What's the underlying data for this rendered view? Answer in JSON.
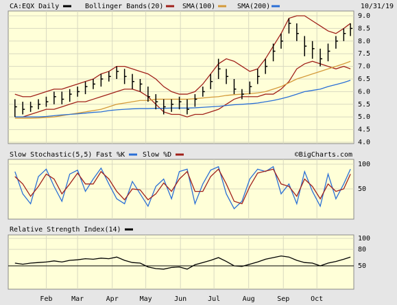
{
  "chart_data": [
    {
      "type": "ohlc",
      "title": "CA:EQX Daily",
      "date": "10/31/19",
      "color": "#000000",
      "x": [
        4,
        11,
        18,
        25,
        32,
        39,
        46,
        53,
        60,
        67,
        74,
        81,
        88,
        95,
        102,
        109,
        116,
        123,
        130,
        137,
        144,
        151,
        158,
        165,
        172,
        179,
        186,
        193,
        200,
        207,
        214,
        221,
        228,
        235,
        242,
        249,
        256,
        263,
        270,
        277,
        284,
        291,
        298,
        304
      ],
      "xlim": [
        -2,
        307
      ],
      "xticks": [
        {
          "value": 32,
          "label": "Feb"
        },
        {
          "value": 60,
          "label": "Mar"
        },
        {
          "value": 91,
          "label": "Apr"
        },
        {
          "value": 121,
          "label": "May"
        },
        {
          "value": 152,
          "label": "Jun"
        },
        {
          "value": 182,
          "label": "Jul"
        },
        {
          "value": 213,
          "label": "Aug"
        },
        {
          "value": 244,
          "label": "Sep"
        },
        {
          "value": 274,
          "label": "Oct"
        }
      ],
      "close": [
        5.4,
        5.3,
        5.4,
        5.5,
        5.6,
        5.8,
        5.7,
        5.9,
        6.0,
        6.2,
        6.3,
        6.5,
        6.6,
        6.8,
        6.6,
        6.4,
        6.3,
        5.8,
        5.6,
        5.4,
        5.5,
        5.6,
        5.3,
        5.7,
        6.0,
        6.4,
        6.9,
        6.6,
        6.1,
        5.9,
        6.2,
        6.6,
        7.0,
        7.6,
        8.0,
        8.7,
        8.3,
        7.8,
        7.7,
        7.3,
        7.6,
        8.0,
        8.3,
        8.5
      ],
      "high": [
        5.7,
        5.6,
        5.6,
        5.7,
        5.8,
        6.0,
        6.0,
        6.1,
        6.2,
        6.4,
        6.5,
        6.7,
        6.8,
        7.0,
        6.9,
        6.7,
        6.5,
        6.2,
        5.9,
        5.7,
        5.7,
        5.8,
        5.7,
        5.9,
        6.2,
        6.7,
        7.3,
        6.9,
        6.5,
        6.1,
        6.4,
        6.9,
        7.3,
        7.9,
        8.3,
        8.9,
        8.7,
        8.2,
        8.0,
        7.7,
        7.9,
        8.2,
        8.5,
        8.7
      ],
      "low": [
        5.0,
        5.1,
        5.2,
        5.3,
        5.4,
        5.5,
        5.5,
        5.6,
        5.8,
        5.9,
        6.1,
        6.2,
        6.4,
        6.5,
        6.3,
        6.1,
        6.0,
        5.6,
        5.3,
        5.1,
        5.2,
        5.3,
        5.1,
        5.4,
        5.8,
        6.1,
        6.5,
        6.3,
        5.9,
        5.7,
        5.9,
        6.3,
        6.7,
        7.2,
        7.7,
        8.3,
        8.0,
        7.4,
        7.3,
        7.0,
        7.2,
        7.7,
        8.0,
        8.2
      ],
      "ylim": [
        4,
        9
      ],
      "yticks": [
        {
          "value": 4,
          "label": "4.0"
        },
        {
          "value": 4.5,
          "label": "4.5"
        },
        {
          "value": 5,
          "label": "5.0"
        },
        {
          "value": 5.5,
          "label": "5.5"
        },
        {
          "value": 6,
          "label": "6.0"
        },
        {
          "value": 6.5,
          "label": "6.5"
        },
        {
          "value": 7,
          "label": "7.0"
        },
        {
          "value": 7.5,
          "label": "7.5"
        },
        {
          "value": 8,
          "label": "8.0"
        },
        {
          "value": 8.5,
          "label": "8.5"
        },
        {
          "value": 9,
          "label": "9.0"
        }
      ],
      "bands": {
        "name": "Bollinger Bands(20)",
        "color": "#a0201a",
        "upper": [
          5.9,
          5.8,
          5.8,
          5.9,
          6.0,
          6.1,
          6.1,
          6.2,
          6.3,
          6.4,
          6.5,
          6.7,
          6.8,
          7.0,
          7.0,
          6.9,
          6.8,
          6.7,
          6.5,
          6.2,
          6.0,
          5.9,
          5.9,
          6.0,
          6.3,
          6.7,
          7.1,
          7.3,
          7.2,
          7.0,
          6.8,
          6.9,
          7.3,
          7.8,
          8.3,
          8.9,
          9.0,
          9.0,
          8.8,
          8.6,
          8.4,
          8.3,
          8.5,
          8.7
        ],
        "lower": [
          5.0,
          5.0,
          5.1,
          5.2,
          5.3,
          5.3,
          5.4,
          5.5,
          5.6,
          5.6,
          5.7,
          5.8,
          5.9,
          6.0,
          6.1,
          6.1,
          6.0,
          5.8,
          5.5,
          5.2,
          5.1,
          5.1,
          5.0,
          5.1,
          5.1,
          5.2,
          5.3,
          5.5,
          5.7,
          5.8,
          5.8,
          5.8,
          5.9,
          5.9,
          6.1,
          6.4,
          6.9,
          7.1,
          7.2,
          7.1,
          7.0,
          6.9,
          7.0,
          6.9
        ]
      },
      "series": [
        {
          "name": "SMA(100)",
          "color": "#d49a3a",
          "values": [
            4.95,
            4.95,
            4.95,
            4.96,
            4.98,
            5.0,
            5.05,
            5.1,
            5.15,
            5.2,
            5.25,
            5.3,
            5.4,
            5.5,
            5.55,
            5.6,
            5.65,
            5.65,
            5.7,
            5.7,
            5.7,
            5.7,
            5.7,
            5.72,
            5.75,
            5.78,
            5.8,
            5.85,
            5.88,
            5.9,
            5.92,
            5.95,
            6.0,
            6.1,
            6.2,
            6.35,
            6.5,
            6.6,
            6.7,
            6.8,
            6.9,
            7.0,
            7.1,
            7.2
          ]
        },
        {
          "name": "SMA(200)",
          "color": "#2a6fd6",
          "values": [
            5.0,
            5.0,
            5.0,
            5.0,
            5.02,
            5.05,
            5.08,
            5.1,
            5.12,
            5.15,
            5.18,
            5.2,
            5.25,
            5.28,
            5.3,
            5.32,
            5.33,
            5.33,
            5.34,
            5.34,
            5.35,
            5.35,
            5.35,
            5.36,
            5.38,
            5.4,
            5.42,
            5.45,
            5.48,
            5.5,
            5.52,
            5.55,
            5.6,
            5.65,
            5.72,
            5.8,
            5.9,
            6.0,
            6.05,
            6.1,
            6.2,
            6.28,
            6.36,
            6.45
          ]
        }
      ]
    },
    {
      "type": "line",
      "title": "Slow Stochastic(5,5)",
      "credit": "©BigCharts.com",
      "ylim": [
        0,
        100
      ],
      "yticks": [
        50,
        100
      ],
      "series": [
        {
          "name": "Fast %K",
          "color": "#2a6fd6",
          "values": [
            85,
            40,
            20,
            75,
            90,
            55,
            25,
            80,
            88,
            45,
            70,
            92,
            60,
            30,
            20,
            65,
            40,
            15,
            55,
            70,
            30,
            85,
            90,
            20,
            60,
            88,
            95,
            40,
            10,
            25,
            70,
            90,
            85,
            95,
            40,
            60,
            20,
            85,
            45,
            15,
            80,
            30,
            60,
            90
          ]
        },
        {
          "name": "Slow %D",
          "color": "#a0201a",
          "values": [
            75,
            60,
            35,
            55,
            80,
            70,
            40,
            60,
            82,
            60,
            60,
            85,
            70,
            45,
            28,
            50,
            48,
            28,
            40,
            62,
            45,
            70,
            85,
            45,
            45,
            75,
            90,
            60,
            25,
            20,
            55,
            82,
            86,
            90,
            60,
            55,
            35,
            70,
            55,
            30,
            60,
            45,
            50,
            80
          ]
        }
      ]
    },
    {
      "type": "line",
      "title": "Relative Strength Index(14)",
      "color": "#000000",
      "ylim": [
        10,
        100
      ],
      "yticks": [
        50,
        80,
        100
      ],
      "values": [
        55,
        53,
        55,
        56,
        57,
        59,
        57,
        60,
        61,
        63,
        62,
        64,
        63,
        66,
        60,
        56,
        55,
        48,
        45,
        44,
        47,
        48,
        44,
        52,
        56,
        60,
        65,
        58,
        50,
        49,
        53,
        57,
        62,
        65,
        68,
        66,
        60,
        56,
        55,
        50,
        55,
        58,
        62,
        66
      ]
    }
  ]
}
